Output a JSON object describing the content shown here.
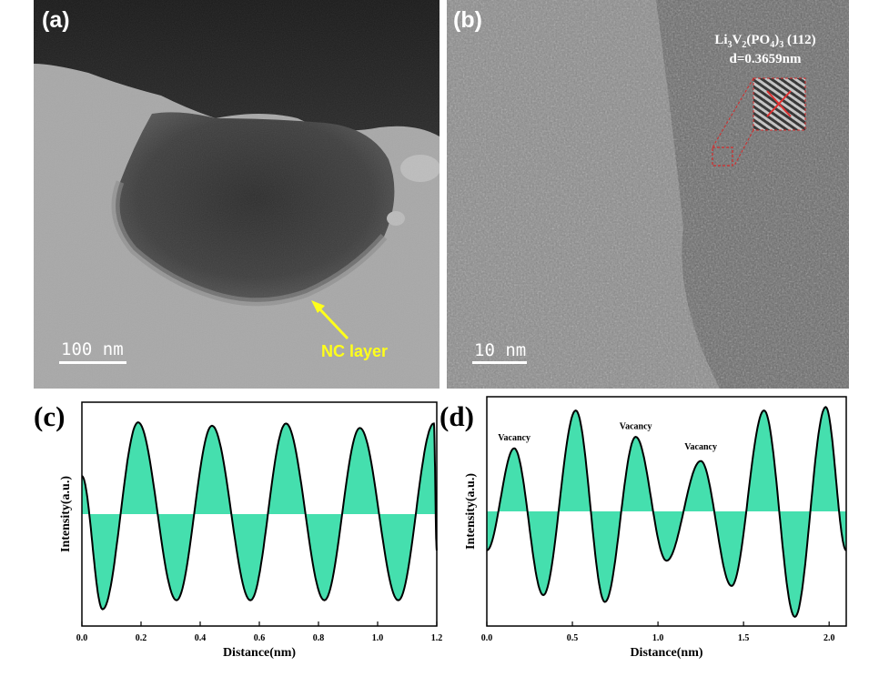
{
  "panel_a": {
    "label": "(a)",
    "scale_bar": "100 nm",
    "annotation": "NC layer"
  },
  "panel_b": {
    "label": "(b)",
    "lattice_formula": "Li3V2(PO4)3 (112)",
    "d_spacing": "d=0.3659nm",
    "scale_bar": "10 nm"
  },
  "colors": {
    "fill": "#45dfae",
    "annotation": "#ffff1a",
    "roi": "#d42a2a"
  },
  "chart_data": [
    {
      "type": "area",
      "label": "(c)",
      "xlabel": "Distance(nm)",
      "ylabel": "Intensity(a.u.)",
      "xlim": [
        0,
        1.2
      ],
      "ylim": [
        -1.0,
        1.0
      ],
      "xticks": [
        "0.0",
        "0.2",
        "0.4",
        "0.6",
        "0.8",
        "1.0",
        "1.2"
      ],
      "baseline": 0,
      "peaks": [
        {
          "x": 0.07,
          "y": -0.85
        },
        {
          "x": 0.19,
          "y": 0.82
        },
        {
          "x": 0.32,
          "y": -0.77
        },
        {
          "x": 0.44,
          "y": 0.79
        },
        {
          "x": 0.57,
          "y": -0.77
        },
        {
          "x": 0.69,
          "y": 0.81
        },
        {
          "x": 0.82,
          "y": -0.77
        },
        {
          "x": 0.94,
          "y": 0.77
        },
        {
          "x": 1.07,
          "y": -0.77
        },
        {
          "x": 1.19,
          "y": 0.81
        }
      ]
    },
    {
      "type": "area",
      "label": "(d)",
      "xlabel": "Distance(nm)",
      "ylabel": "Intensity(a.u.)",
      "xlim": [
        0,
        2.1
      ],
      "ylim": [
        -1.0,
        1.0
      ],
      "xticks": [
        "0.0",
        "0.5",
        "1.0",
        "1.5",
        "2.0"
      ],
      "baseline": 0,
      "peaks": [
        {
          "x": 0.0,
          "y": -0.34
        },
        {
          "x": 0.16,
          "y": 0.55
        },
        {
          "x": 0.33,
          "y": -0.73
        },
        {
          "x": 0.52,
          "y": 0.88
        },
        {
          "x": 0.69,
          "y": -0.79
        },
        {
          "x": 0.87,
          "y": 0.65
        },
        {
          "x": 1.05,
          "y": -0.43
        },
        {
          "x": 1.25,
          "y": 0.44
        },
        {
          "x": 1.43,
          "y": -0.65
        },
        {
          "x": 1.62,
          "y": 0.88
        },
        {
          "x": 1.8,
          "y": -0.92
        },
        {
          "x": 1.98,
          "y": 0.91
        },
        {
          "x": 2.1,
          "y": -0.34
        }
      ],
      "annotations": [
        {
          "text": "Vacancy",
          "x": 0.16,
          "y": 0.62
        },
        {
          "text": "Vacancy",
          "x": 0.87,
          "y": 0.72
        },
        {
          "text": "Vacancy",
          "x": 1.25,
          "y": 0.54
        }
      ]
    }
  ]
}
